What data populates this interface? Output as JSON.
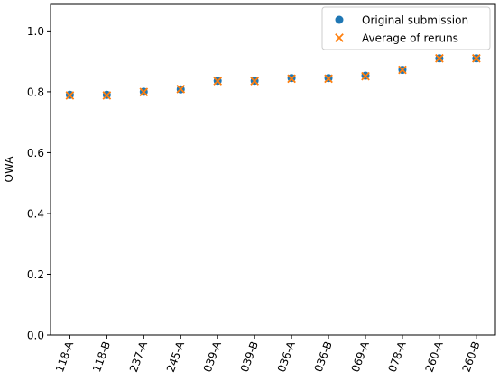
{
  "chart_data": {
    "type": "scatter",
    "title": "",
    "xlabel": "",
    "ylabel": "OWA",
    "ylim": [
      0.0,
      1.09
    ],
    "yticks": [
      0.0,
      0.2,
      0.4,
      0.6,
      0.8,
      1.0
    ],
    "ytick_labels": [
      "0.0",
      "0.2",
      "0.4",
      "0.6",
      "0.8",
      "1.0"
    ],
    "grid": false,
    "legend_position": "top-right",
    "categories": [
      "118-A",
      "118-B",
      "237-A",
      "245-A",
      "039-A",
      "039-B",
      "036-A",
      "036-B",
      "069-A",
      "078-A",
      "260-A",
      "260-B"
    ],
    "series": [
      {
        "name": "Original submission",
        "marker": "circle",
        "color": "#1f77b4",
        "values": [
          0.79,
          0.79,
          0.8,
          0.808,
          0.836,
          0.836,
          0.845,
          0.845,
          0.853,
          0.872,
          0.91,
          0.91
        ]
      },
      {
        "name": "Average of reruns",
        "marker": "x",
        "color": "#ff7f0e",
        "values": [
          0.788,
          0.788,
          0.799,
          0.809,
          0.835,
          0.835,
          0.843,
          0.843,
          0.851,
          0.872,
          0.91,
          0.91
        ]
      }
    ]
  }
}
